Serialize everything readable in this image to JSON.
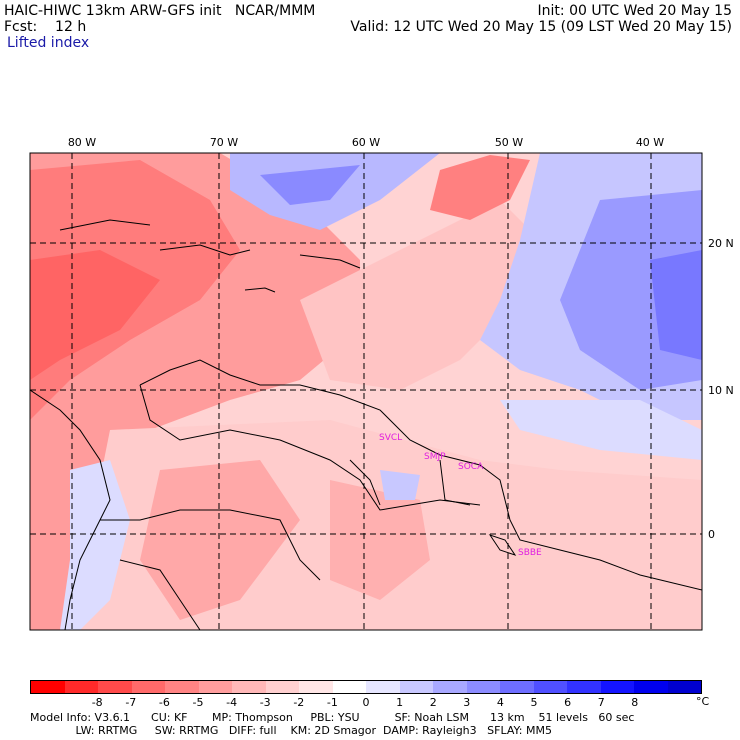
{
  "header": {
    "title_left": "HAIC-HIWC 13km ARW-GFS init   NCAR/MMM",
    "forecast": "Fcst:    12 h",
    "field": "Lifted index",
    "init": "Init: 00 UTC Wed 20 May 15",
    "valid": "Valid: 12 UTC Wed 20 May 15 (09 LST Wed 20 May 15)"
  },
  "map": {
    "lon_labels": [
      "80 W",
      "70 W",
      "60 W",
      "50 W",
      "40 W"
    ],
    "lat_labels": [
      "20 N",
      "10 N",
      "0"
    ],
    "stations": [
      "SVCL",
      "SMJP",
      "SOCA",
      "SBBE"
    ],
    "station_color": "#e020e0"
  },
  "colorbar": {
    "colors": [
      "#ff0000",
      "#ff2a2a",
      "#ff4a4a",
      "#ff6a6a",
      "#ff8484",
      "#ff9e9e",
      "#ffb8b8",
      "#ffd0d0",
      "#ffe6e6",
      "#ffffff",
      "#e6e6ff",
      "#c8c8ff",
      "#a8a8ff",
      "#8c8cff",
      "#6e6eff",
      "#5050ff",
      "#3232ff",
      "#1414ff",
      "#0000ee",
      "#0000d0"
    ],
    "labels": [
      "-8",
      "-7",
      "-6",
      "-5",
      "-4",
      "-3",
      "-2",
      "-1",
      "0",
      "1",
      "2",
      "3",
      "4",
      "5",
      "6",
      "7",
      "8"
    ],
    "unit": "°C"
  },
  "model_info": {
    "line1": "Model Info: V3.6.1      CU: KF       MP: Thompson     PBL: YSU          SF: Noah LSM      13 km    51 levels   60 sec",
    "line2": "             LW: RRTMG     SW: RRTMG   DIFF: full    KM: 2D Smagor  DAMP: Rayleigh3   SFLAY: MM5"
  }
}
